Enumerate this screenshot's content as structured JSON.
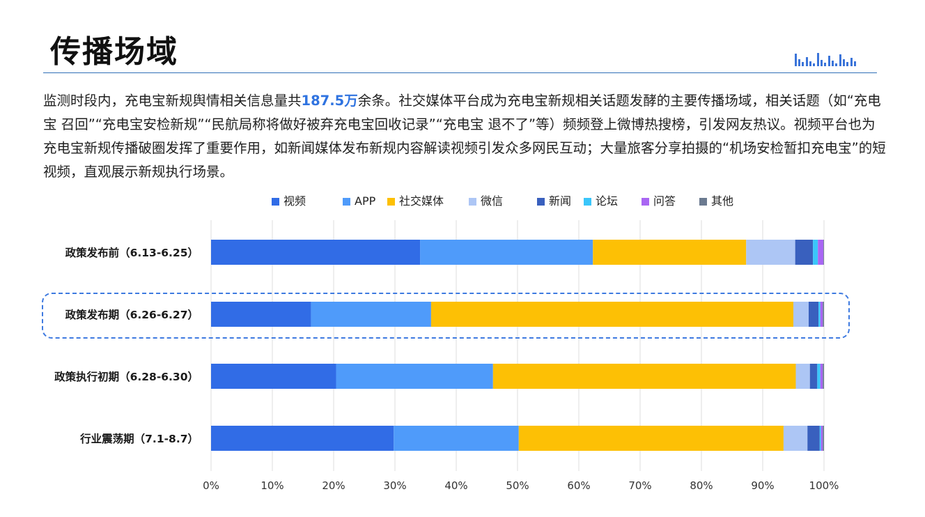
{
  "page": {
    "title": "传播场域",
    "paragraph_before": "监测时段内，充电宝新规舆情相关信息量共",
    "paragraph_highlight": "187.5万",
    "paragraph_after": "余条。社交媒体平台成为充电宝新规相关话题发酵的主要传播场域，相关话题（如“充电宝 召回”“充电宝安检新规”“民航局称将做好被弃充电宝回收记录”“充电宝 退不了”等）频频登上微博热搜榜，引发网友热议。视频平台也为充电宝新规传播破圈发挥了重要作用，如新闻媒体发布新规内容解读视频引发众多网民互动；大量旅客分享拍摄的“机场安检暂扣充电宝”的短视频，直观展示新规执行场景。"
  },
  "chart_data": {
    "type": "bar",
    "orientation": "horizontal",
    "stacked": "percent",
    "categories": [
      "政策发布前（6.13-6.25）",
      "政策发布期（6.26-6.27）",
      "政策执行初期（6.28-6.30）",
      "行业震荡期（7.1-8.7）"
    ],
    "series": [
      {
        "name": "视频",
        "color": "#316ce6",
        "values": [
          34.1,
          16.3,
          20.4,
          29.8
        ]
      },
      {
        "name": "APP",
        "color": "#4f9bfa",
        "values": [
          28.2,
          19.6,
          25.6,
          20.4
        ]
      },
      {
        "name": "社交媒体",
        "color": "#fdc005",
        "values": [
          25.0,
          59.1,
          49.4,
          43.2
        ]
      },
      {
        "name": "微信",
        "color": "#adc6f5",
        "values": [
          8.0,
          2.5,
          2.3,
          3.9
        ]
      },
      {
        "name": "新闻",
        "color": "#3960be",
        "values": [
          2.9,
          1.6,
          1.2,
          2.0
        ]
      },
      {
        "name": "论坛",
        "color": "#3ac6fa",
        "values": [
          0.8,
          0.3,
          0.5,
          0.2
        ]
      },
      {
        "name": "问答",
        "color": "#a966f3",
        "values": [
          0.9,
          0.4,
          0.4,
          0.3
        ]
      },
      {
        "name": "其他",
        "color": "#6b7a90",
        "values": [
          0.1,
          0.2,
          0.2,
          0.2
        ]
      }
    ],
    "xlim": [
      0,
      100
    ],
    "x_ticks": [
      "0%",
      "10%",
      "20%",
      "30%",
      "40%",
      "50%",
      "60%",
      "70%",
      "80%",
      "90%",
      "100%"
    ],
    "grid": true,
    "legend": "top",
    "highlighted_category": "政策发布期（6.26-6.27）"
  }
}
